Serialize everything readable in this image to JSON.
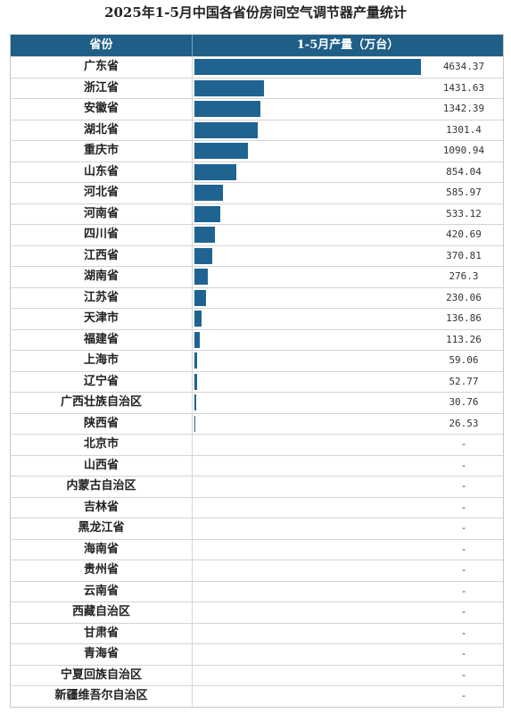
{
  "title": "2025年1-5月中国各省份房间空气调节器产量统计",
  "chart_data": {
    "type": "table",
    "columns": [
      "省份",
      "1-5月产量（万台）"
    ],
    "rows": [
      {
        "province": "广东省",
        "value": 4634.37,
        "label": "4634.37"
      },
      {
        "province": "浙江省",
        "value": 1431.63,
        "label": "1431.63"
      },
      {
        "province": "安徽省",
        "value": 1342.39,
        "label": "1342.39"
      },
      {
        "province": "湖北省",
        "value": 1301.4,
        "label": "1301.4"
      },
      {
        "province": "重庆市",
        "value": 1090.94,
        "label": "1090.94"
      },
      {
        "province": "山东省",
        "value": 854.04,
        "label": "854.04"
      },
      {
        "province": "河北省",
        "value": 585.97,
        "label": "585.97"
      },
      {
        "province": "河南省",
        "value": 533.12,
        "label": "533.12"
      },
      {
        "province": "四川省",
        "value": 420.69,
        "label": "420.69"
      },
      {
        "province": "江西省",
        "value": 370.81,
        "label": "370.81"
      },
      {
        "province": "湖南省",
        "value": 276.3,
        "label": "276.3"
      },
      {
        "province": "江苏省",
        "value": 230.06,
        "label": "230.06"
      },
      {
        "province": "天津市",
        "value": 136.86,
        "label": "136.86"
      },
      {
        "province": "福建省",
        "value": 113.26,
        "label": "113.26"
      },
      {
        "province": "上海市",
        "value": 59.06,
        "label": "59.06"
      },
      {
        "province": "辽宁省",
        "value": 52.77,
        "label": "52.77"
      },
      {
        "province": "广西壮族自治区",
        "value": 30.76,
        "label": "30.76"
      },
      {
        "province": "陕西省",
        "value": 26.53,
        "label": "26.53"
      },
      {
        "province": "北京市",
        "value": null,
        "label": "-"
      },
      {
        "province": "山西省",
        "value": null,
        "label": "-"
      },
      {
        "province": "内蒙古自治区",
        "value": null,
        "label": "-"
      },
      {
        "province": "吉林省",
        "value": null,
        "label": "-"
      },
      {
        "province": "黑龙江省",
        "value": null,
        "label": "-"
      },
      {
        "province": "海南省",
        "value": null,
        "label": "-"
      },
      {
        "province": "贵州省",
        "value": null,
        "label": "-"
      },
      {
        "province": "云南省",
        "value": null,
        "label": "-"
      },
      {
        "province": "西藏自治区",
        "value": null,
        "label": "-"
      },
      {
        "province": "甘肃省",
        "value": null,
        "label": "-"
      },
      {
        "province": "青海省",
        "value": null,
        "label": "-"
      },
      {
        "province": "宁夏回族自治区",
        "value": null,
        "label": "-"
      },
      {
        "province": "新疆维吾尔自治区",
        "value": null,
        "label": "-"
      }
    ],
    "bar_color": "#1f6391",
    "header_color": "#1e5e87"
  }
}
